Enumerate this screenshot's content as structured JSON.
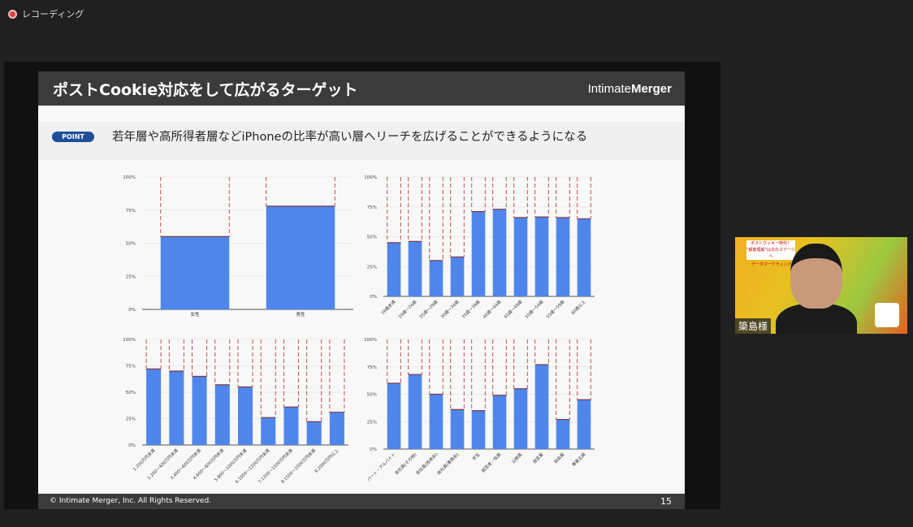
{
  "recording": {
    "label": "レコーディング"
  },
  "slide": {
    "title": "ポストCookie対応をして広がるターゲット",
    "logo_light": "Intimate",
    "logo_bold": "Merger",
    "point_badge": "POINT",
    "point_text": "若年層や高所得者層などiPhoneの比率が高い層へリーチを広げることができるようになる",
    "copyright": "© Intimate Merger, Inc. All Rights Reserved.",
    "page_number": "15"
  },
  "webcam": {
    "name": "簗島様",
    "banner_line1": "ポストクッキー時代！",
    "banner_line2": "\"顧客理解\"は次のステージへ",
    "banner_line3": "データマーケティング最前線 オンラインセミナー"
  },
  "colors": {
    "bar": "#4f86ec",
    "dash": "#c0504d"
  },
  "chart_data": [
    {
      "type": "bar",
      "title": "",
      "ylim": [
        0,
        100
      ],
      "yticks": [
        "0%",
        "25%",
        "50%",
        "75%",
        "100%"
      ],
      "categories": [
        "女性",
        "男性"
      ],
      "values": [
        55,
        78
      ]
    },
    {
      "type": "bar",
      "title": "",
      "ylim": [
        0,
        100
      ],
      "yticks": [
        "0%",
        "25%",
        "50%",
        "75%",
        "100%"
      ],
      "categories": [
        "19歳未満",
        "20歳〜24歳",
        "25歳〜29歳",
        "30歳〜34歳",
        "35歳〜39歳",
        "40歳〜44歳",
        "45歳〜49歳",
        "50歳〜54歳",
        "55歳〜59歳",
        "60歳以上"
      ],
      "values": [
        45,
        46,
        30,
        33,
        71,
        73,
        66,
        66.5,
        66,
        65
      ]
    },
    {
      "type": "bar",
      "title": "",
      "ylim": [
        0,
        100
      ],
      "yticks": [
        "0%",
        "25%",
        "50%",
        "75%",
        "100%"
      ],
      "categories": [
        "1.200万円未満",
        "2.200〜400万円未満",
        "3.400〜600万円未満",
        "4.600〜800万円未満",
        "5.800〜1000万円未満",
        "6.1000〜1200万円未満",
        "7.1200〜1500万円未満",
        "8.1500〜2000万円未満",
        "9.2000万円以上"
      ],
      "values": [
        72,
        70,
        65,
        57,
        55,
        26,
        36,
        22,
        31
      ]
    },
    {
      "type": "bar",
      "title": "",
      "ylim": [
        0,
        100
      ],
      "yticks": [
        "0%",
        "25%",
        "50%",
        "75%",
        "100%"
      ],
      "categories": [
        "パート・アルバイト",
        "会社員(その他)",
        "会社員(技術系)",
        "会社員(事務系)",
        "学生",
        "経営者・役員",
        "公務員",
        "自営業",
        "自由業",
        "専業主婦"
      ],
      "values": [
        60,
        68,
        50,
        36,
        35,
        49,
        55,
        77,
        27,
        45
      ]
    }
  ]
}
